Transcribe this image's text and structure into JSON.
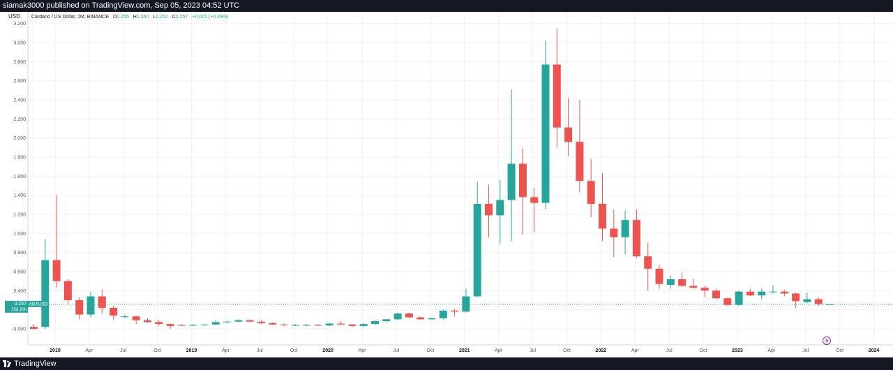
{
  "header": {
    "published": "siamak3000 published on TradingView.com, Sep 05, 2023 04:52 UTC"
  },
  "footer": {
    "brand": "TradingView"
  },
  "colors": {
    "up": "#26a69a",
    "down": "#ef5350",
    "grid": "#eef0f3",
    "text": "#131722",
    "axis_text": "#555a64",
    "price_label_bg": "#26a69a"
  },
  "chart_data": {
    "type": "candlestick",
    "title": "Cardano / US Dollar, 1M, BINANCE",
    "currency": "USD",
    "legend": {
      "O": "0.255",
      "H": "0.260",
      "L": "0.252",
      "C": "0.257",
      "change": "+0.001 (+0.39%)"
    },
    "symbol": "ADAUSD",
    "last_price": "0.257",
    "countdown": "25d 20h",
    "ylim": [
      -0.2,
      3.2
    ],
    "y_ticks": [
      -0.0,
      0.2,
      0.4,
      0.6,
      0.8,
      1.0,
      1.2,
      1.4,
      1.6,
      1.8,
      2.0,
      2.2,
      2.4,
      2.6,
      2.8,
      3.0,
      3.2
    ],
    "y_tick_labels": [
      "−0.000",
      "0.200",
      "0.400",
      "0.600",
      "0.800",
      "1.000",
      "1.200",
      "1.400",
      "1.600",
      "1.800",
      "2.000",
      "2.200",
      "2.400",
      "2.600",
      "2.800",
      "3.000",
      "3.200"
    ],
    "x_ticks": [
      {
        "label": "2018",
        "bold": true,
        "month_index": 2
      },
      {
        "label": "Apr",
        "bold": false,
        "month_index": 5
      },
      {
        "label": "Jul",
        "bold": false,
        "month_index": 8
      },
      {
        "label": "Oct",
        "bold": false,
        "month_index": 11
      },
      {
        "label": "2019",
        "bold": true,
        "month_index": 14
      },
      {
        "label": "Apr",
        "bold": false,
        "month_index": 17
      },
      {
        "label": "Jul",
        "bold": false,
        "month_index": 20
      },
      {
        "label": "Oct",
        "bold": false,
        "month_index": 23
      },
      {
        "label": "2020",
        "bold": true,
        "month_index": 26
      },
      {
        "label": "Apr",
        "bold": false,
        "month_index": 29
      },
      {
        "label": "Jul",
        "bold": false,
        "month_index": 32
      },
      {
        "label": "Oct",
        "bold": false,
        "month_index": 35
      },
      {
        "label": "2021",
        "bold": true,
        "month_index": 38
      },
      {
        "label": "Apr",
        "bold": false,
        "month_index": 41
      },
      {
        "label": "Jul",
        "bold": false,
        "month_index": 44
      },
      {
        "label": "Oct",
        "bold": false,
        "month_index": 47
      },
      {
        "label": "2022",
        "bold": true,
        "month_index": 50
      },
      {
        "label": "Apr",
        "bold": false,
        "month_index": 53
      },
      {
        "label": "Jul",
        "bold": false,
        "month_index": 56
      },
      {
        "label": "Oct",
        "bold": false,
        "month_index": 59
      },
      {
        "label": "2023",
        "bold": true,
        "month_index": 62
      },
      {
        "label": "Apr",
        "bold": false,
        "month_index": 65
      },
      {
        "label": "Jul",
        "bold": false,
        "month_index": 68
      },
      {
        "label": "Oct",
        "bold": false,
        "month_index": 71
      },
      {
        "label": "2024",
        "bold": true,
        "month_index": 74
      }
    ],
    "month_index_range": [
      -0.5,
      75.5
    ],
    "candles": [
      {
        "o": 0.02,
        "h": 0.05,
        "l": -0.01,
        "c": 0.0
      },
      {
        "o": 0.02,
        "h": 0.94,
        "l": 0.0,
        "c": 0.72
      },
      {
        "o": 0.72,
        "h": 1.4,
        "l": 0.43,
        "c": 0.5
      },
      {
        "o": 0.5,
        "h": 0.52,
        "l": 0.25,
        "c": 0.3
      },
      {
        "o": 0.3,
        "h": 0.33,
        "l": 0.1,
        "c": 0.15
      },
      {
        "o": 0.15,
        "h": 0.39,
        "l": 0.12,
        "c": 0.34
      },
      {
        "o": 0.34,
        "h": 0.41,
        "l": 0.16,
        "c": 0.22
      },
      {
        "o": 0.22,
        "h": 0.24,
        "l": 0.1,
        "c": 0.14
      },
      {
        "o": 0.13,
        "h": 0.15,
        "l": 0.11,
        "c": 0.13
      },
      {
        "o": 0.13,
        "h": 0.14,
        "l": 0.05,
        "c": 0.09
      },
      {
        "o": 0.09,
        "h": 0.11,
        "l": 0.06,
        "c": 0.07
      },
      {
        "o": 0.07,
        "h": 0.09,
        "l": 0.03,
        "c": 0.05
      },
      {
        "o": 0.05,
        "h": 0.06,
        "l": 0.0,
        "c": 0.03
      },
      {
        "o": 0.04,
        "h": 0.05,
        "l": 0.03,
        "c": 0.035
      },
      {
        "o": 0.04,
        "h": 0.05,
        "l": 0.03,
        "c": 0.04
      },
      {
        "o": 0.04,
        "h": 0.05,
        "l": 0.03,
        "c": 0.045
      },
      {
        "o": 0.045,
        "h": 0.09,
        "l": 0.04,
        "c": 0.07
      },
      {
        "o": 0.07,
        "h": 0.09,
        "l": 0.06,
        "c": 0.075
      },
      {
        "o": 0.075,
        "h": 0.1,
        "l": 0.07,
        "c": 0.09
      },
      {
        "o": 0.09,
        "h": 0.1,
        "l": 0.07,
        "c": 0.075
      },
      {
        "o": 0.075,
        "h": 0.09,
        "l": 0.05,
        "c": 0.06
      },
      {
        "o": 0.06,
        "h": 0.07,
        "l": 0.04,
        "c": 0.045
      },
      {
        "o": 0.045,
        "h": 0.06,
        "l": 0.03,
        "c": 0.04
      },
      {
        "o": 0.04,
        "h": 0.05,
        "l": 0.03,
        "c": 0.04
      },
      {
        "o": 0.04,
        "h": 0.05,
        "l": 0.03,
        "c": 0.04
      },
      {
        "o": 0.04,
        "h": 0.05,
        "l": 0.03,
        "c": 0.035
      },
      {
        "o": 0.035,
        "h": 0.06,
        "l": 0.03,
        "c": 0.055
      },
      {
        "o": 0.055,
        "h": 0.08,
        "l": 0.04,
        "c": 0.045
      },
      {
        "o": 0.045,
        "h": 0.05,
        "l": 0.02,
        "c": 0.03
      },
      {
        "o": 0.03,
        "h": 0.06,
        "l": 0.02,
        "c": 0.05
      },
      {
        "o": 0.05,
        "h": 0.09,
        "l": 0.04,
        "c": 0.08
      },
      {
        "o": 0.08,
        "h": 0.1,
        "l": 0.07,
        "c": 0.1
      },
      {
        "o": 0.1,
        "h": 0.17,
        "l": 0.09,
        "c": 0.16
      },
      {
        "o": 0.16,
        "h": 0.17,
        "l": 0.11,
        "c": 0.12
      },
      {
        "o": 0.12,
        "h": 0.13,
        "l": 0.09,
        "c": 0.1
      },
      {
        "o": 0.1,
        "h": 0.12,
        "l": 0.09,
        "c": 0.11
      },
      {
        "o": 0.11,
        "h": 0.2,
        "l": 0.1,
        "c": 0.19
      },
      {
        "o": 0.19,
        "h": 0.21,
        "l": 0.13,
        "c": 0.18
      },
      {
        "o": 0.18,
        "h": 0.42,
        "l": 0.17,
        "c": 0.34
      },
      {
        "o": 0.34,
        "h": 1.54,
        "l": 0.33,
        "c": 1.31
      },
      {
        "o": 1.31,
        "h": 1.51,
        "l": 0.96,
        "c": 1.19
      },
      {
        "o": 1.19,
        "h": 1.56,
        "l": 0.89,
        "c": 1.35
      },
      {
        "o": 1.35,
        "h": 2.51,
        "l": 0.92,
        "c": 1.73
      },
      {
        "o": 1.73,
        "h": 1.89,
        "l": 0.99,
        "c": 1.38
      },
      {
        "o": 1.38,
        "h": 1.48,
        "l": 1.01,
        "c": 1.32
      },
      {
        "o": 1.32,
        "h": 3.02,
        "l": 1.25,
        "c": 2.77
      },
      {
        "o": 2.77,
        "h": 3.15,
        "l": 1.9,
        "c": 2.11
      },
      {
        "o": 2.11,
        "h": 2.42,
        "l": 1.81,
        "c": 1.96
      },
      {
        "o": 1.96,
        "h": 2.4,
        "l": 1.43,
        "c": 1.55
      },
      {
        "o": 1.55,
        "h": 1.78,
        "l": 1.17,
        "c": 1.31
      },
      {
        "o": 1.31,
        "h": 1.63,
        "l": 0.92,
        "c": 1.05
      },
      {
        "o": 1.05,
        "h": 1.25,
        "l": 0.75,
        "c": 0.96
      },
      {
        "o": 0.96,
        "h": 1.24,
        "l": 0.78,
        "c": 1.14
      },
      {
        "o": 1.14,
        "h": 1.25,
        "l": 0.74,
        "c": 0.76
      },
      {
        "o": 0.76,
        "h": 0.9,
        "l": 0.4,
        "c": 0.63
      },
      {
        "o": 0.63,
        "h": 0.67,
        "l": 0.42,
        "c": 0.47
      },
      {
        "o": 0.46,
        "h": 0.56,
        "l": 0.42,
        "c": 0.52
      },
      {
        "o": 0.52,
        "h": 0.59,
        "l": 0.44,
        "c": 0.45
      },
      {
        "o": 0.45,
        "h": 0.52,
        "l": 0.42,
        "c": 0.43
      },
      {
        "o": 0.43,
        "h": 0.45,
        "l": 0.33,
        "c": 0.4
      },
      {
        "o": 0.4,
        "h": 0.42,
        "l": 0.31,
        "c": 0.32
      },
      {
        "o": 0.32,
        "h": 0.33,
        "l": 0.24,
        "c": 0.25
      },
      {
        "o": 0.25,
        "h": 0.4,
        "l": 0.24,
        "c": 0.39
      },
      {
        "o": 0.39,
        "h": 0.42,
        "l": 0.34,
        "c": 0.35
      },
      {
        "o": 0.35,
        "h": 0.42,
        "l": 0.31,
        "c": 0.39
      },
      {
        "o": 0.39,
        "h": 0.46,
        "l": 0.37,
        "c": 0.39
      },
      {
        "o": 0.39,
        "h": 0.41,
        "l": 0.34,
        "c": 0.37
      },
      {
        "o": 0.37,
        "h": 0.38,
        "l": 0.22,
        "c": 0.29
      },
      {
        "o": 0.28,
        "h": 0.38,
        "l": 0.27,
        "c": 0.31
      },
      {
        "o": 0.31,
        "h": 0.33,
        "l": 0.24,
        "c": 0.26
      },
      {
        "o": 0.255,
        "h": 0.26,
        "l": 0.252,
        "c": 0.257
      }
    ]
  }
}
